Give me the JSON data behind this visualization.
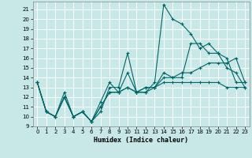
{
  "xlabel": "Humidex (Indice chaleur)",
  "bg_color": "#c8e8e8",
  "grid_color": "#ffffff",
  "line_color": "#006666",
  "xlim": [
    -0.5,
    23.5
  ],
  "ylim": [
    9,
    21.8
  ],
  "yticks": [
    9,
    10,
    11,
    12,
    13,
    14,
    15,
    16,
    17,
    18,
    19,
    20,
    21
  ],
  "xticks": [
    0,
    1,
    2,
    3,
    4,
    5,
    6,
    7,
    8,
    9,
    10,
    11,
    12,
    13,
    14,
    15,
    16,
    17,
    18,
    19,
    20,
    21,
    22,
    23
  ],
  "series": [
    [
      13.5,
      10.5,
      10.0,
      12.5,
      10.0,
      10.5,
      9.5,
      10.5,
      13.0,
      13.0,
      16.5,
      12.5,
      12.5,
      13.5,
      21.5,
      20.0,
      19.5,
      18.5,
      17.0,
      17.5,
      16.5,
      15.0,
      14.5,
      13.0
    ],
    [
      13.5,
      10.5,
      10.0,
      12.0,
      10.0,
      10.5,
      9.5,
      11.5,
      13.5,
      12.5,
      14.5,
      12.5,
      13.0,
      13.0,
      14.5,
      14.0,
      14.0,
      17.5,
      17.5,
      16.5,
      16.5,
      16.0,
      13.5,
      13.5
    ],
    [
      13.5,
      10.5,
      10.0,
      12.0,
      10.0,
      10.5,
      9.5,
      11.0,
      12.5,
      12.5,
      13.0,
      12.5,
      13.0,
      13.0,
      13.5,
      13.5,
      13.5,
      13.5,
      13.5,
      13.5,
      13.5,
      13.0,
      13.0,
      13.0
    ],
    [
      13.5,
      10.5,
      10.0,
      12.0,
      10.0,
      10.5,
      9.5,
      11.0,
      12.5,
      12.5,
      13.0,
      12.5,
      12.5,
      13.0,
      14.0,
      14.0,
      14.5,
      14.5,
      15.0,
      15.5,
      15.5,
      15.5,
      16.0,
      13.5
    ]
  ]
}
